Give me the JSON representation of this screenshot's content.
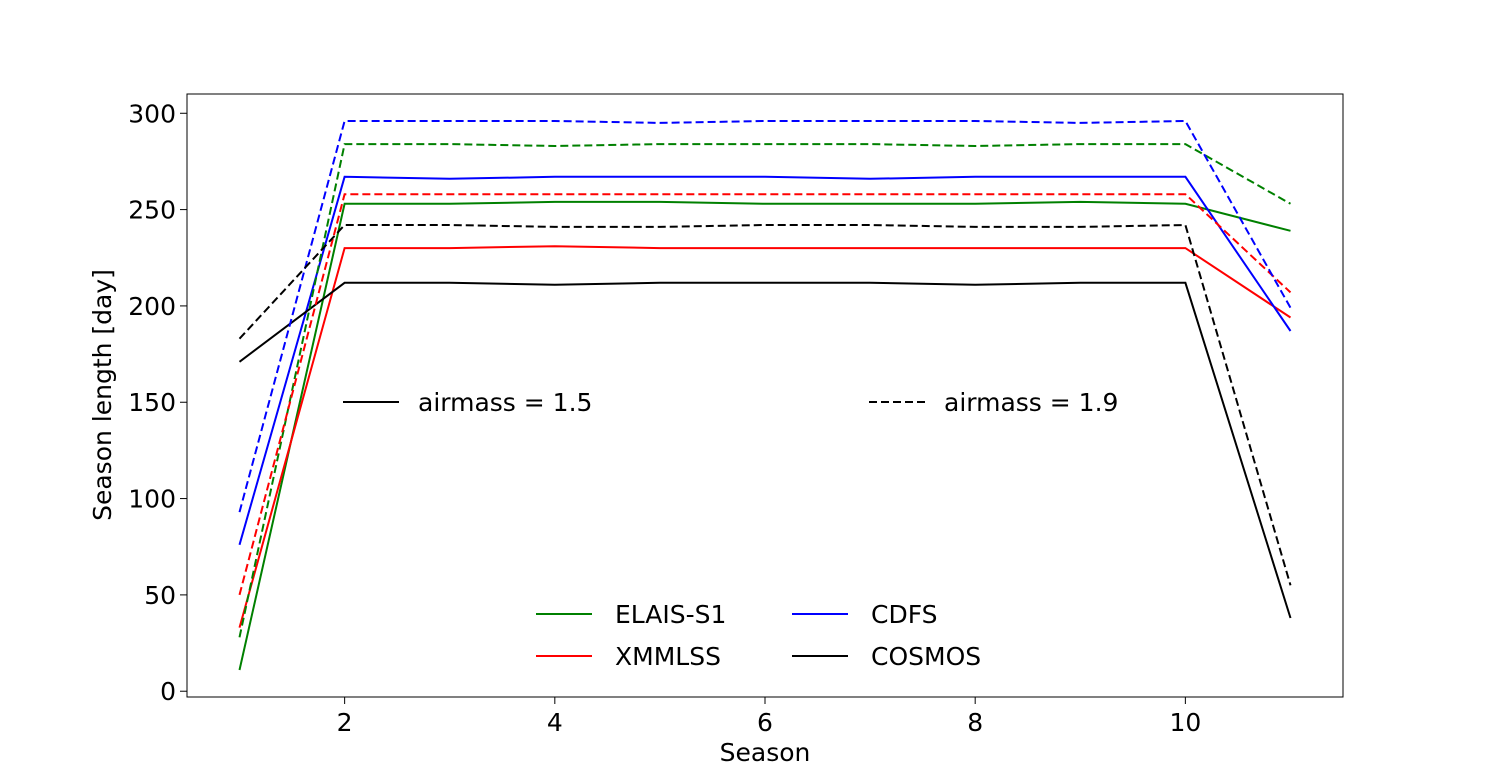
{
  "chart_data": {
    "type": "line",
    "title": "",
    "xlabel": "Season",
    "ylabel": "Season length [day]",
    "xlim": [
      0.5,
      11.5
    ],
    "ylim": [
      -3,
      310
    ],
    "xticks": [
      2,
      4,
      6,
      8,
      10
    ],
    "yticks": [
      0,
      50,
      100,
      150,
      200,
      250,
      300
    ],
    "grid": false,
    "x": [
      1,
      2,
      3,
      4,
      5,
      6,
      7,
      8,
      9,
      10,
      11
    ],
    "series": [
      {
        "name": "ELAIS-S1",
        "airmass": "1.5",
        "color": "#008000",
        "dash": "solid",
        "values": [
          11,
          253,
          253,
          254,
          254,
          253,
          253,
          253,
          254,
          253,
          239
        ]
      },
      {
        "name": "XMMLSS",
        "airmass": "1.5",
        "color": "#ff0000",
        "dash": "solid",
        "values": [
          33,
          230,
          230,
          231,
          230,
          230,
          230,
          230,
          230,
          230,
          194
        ]
      },
      {
        "name": "CDFS",
        "airmass": "1.5",
        "color": "#0000ff",
        "dash": "solid",
        "values": [
          76,
          267,
          266,
          267,
          267,
          267,
          266,
          267,
          267,
          267,
          187
        ]
      },
      {
        "name": "COSMOS",
        "airmass": "1.5",
        "color": "#000000",
        "dash": "solid",
        "values": [
          171,
          212,
          212,
          211,
          212,
          212,
          212,
          211,
          212,
          212,
          38
        ]
      },
      {
        "name": "ELAIS-S1",
        "airmass": "1.9",
        "color": "#008000",
        "dash": "dashed",
        "values": [
          28,
          284,
          284,
          283,
          284,
          284,
          284,
          283,
          284,
          284,
          253
        ]
      },
      {
        "name": "XMMLSS",
        "airmass": "1.9",
        "color": "#ff0000",
        "dash": "dashed",
        "values": [
          50,
          258,
          258,
          258,
          258,
          258,
          258,
          258,
          258,
          258,
          207
        ]
      },
      {
        "name": "CDFS",
        "airmass": "1.9",
        "color": "#0000ff",
        "dash": "dashed",
        "values": [
          93,
          296,
          296,
          296,
          295,
          296,
          296,
          296,
          295,
          296,
          199
        ]
      },
      {
        "name": "COSMOS",
        "airmass": "1.9",
        "color": "#000000",
        "dash": "dashed",
        "values": [
          183,
          242,
          242,
          241,
          241,
          242,
          242,
          241,
          241,
          242,
          55
        ]
      }
    ],
    "style_legend": [
      {
        "label": "airmass = 1.5",
        "dash": "solid"
      },
      {
        "label": "airmass = 1.9",
        "dash": "dashed"
      }
    ],
    "legend": {
      "placement": "lower-center",
      "columns": 2,
      "entries": [
        {
          "label": "ELAIS-S1",
          "color": "#008000"
        },
        {
          "label": "CDFS",
          "color": "#0000ff"
        },
        {
          "label": "XMMLSS",
          "color": "#ff0000"
        },
        {
          "label": "COSMOS",
          "color": "#000000"
        }
      ]
    }
  }
}
